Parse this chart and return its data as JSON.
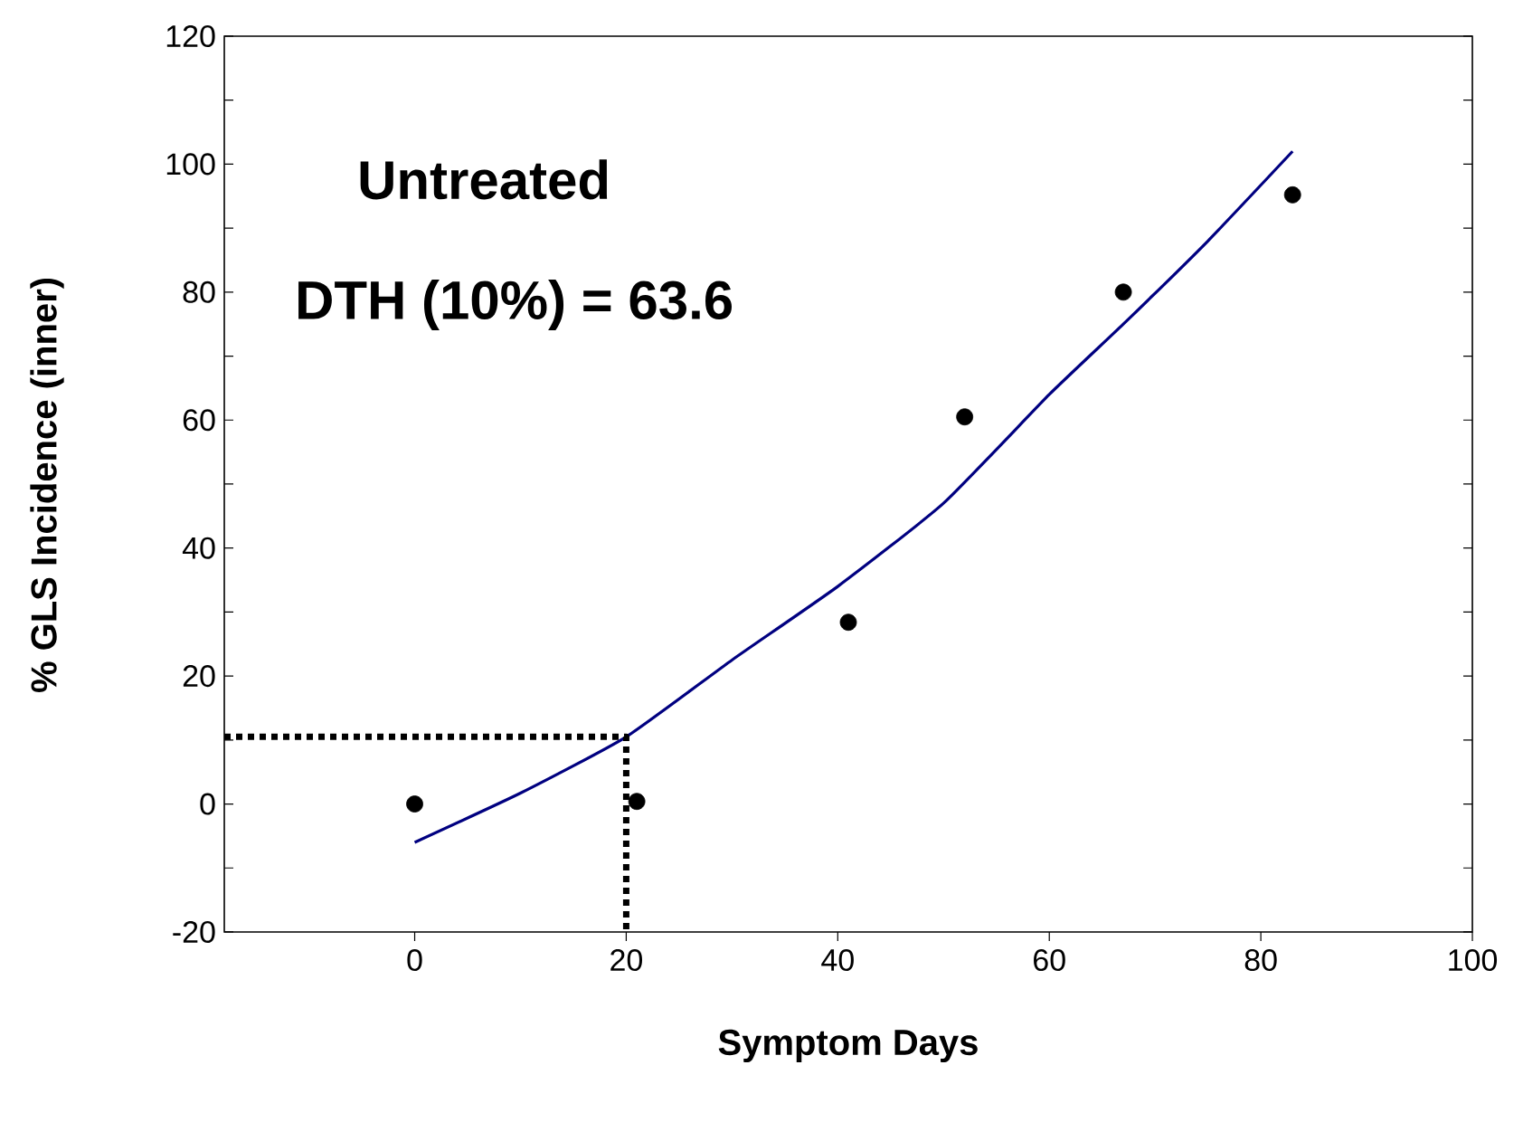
{
  "chart_data": {
    "type": "scatter",
    "xlabel": "Symptom Days",
    "ylabel": "% GLS Incidence (inner)",
    "xlim": [
      -18,
      100
    ],
    "ylim": [
      -20,
      120
    ],
    "xticks": [
      0,
      20,
      40,
      60,
      80,
      100
    ],
    "yticks": [
      -20,
      0,
      20,
      40,
      60,
      80,
      100,
      120
    ],
    "grid": false,
    "annotations": [
      "Untreated",
      "DTH (10%) = 63.6"
    ],
    "series": [
      {
        "type": "line",
        "color": "#000080",
        "line_style": "solid",
        "marker": "none",
        "x": [
          0,
          10,
          20,
          30,
          40,
          50,
          60,
          67,
          75,
          83
        ],
        "values": [
          -6,
          1.7,
          10.5,
          22.5,
          34,
          47,
          64,
          75,
          88,
          102
        ]
      },
      {
        "type": "line",
        "color": "#000000",
        "line_style": "dotted",
        "marker": "none",
        "x": [
          -18,
          20,
          20
        ],
        "values": [
          10.5,
          10.5,
          -20
        ]
      },
      {
        "color": "#000000",
        "marker": "circle",
        "x": [
          0,
          21,
          41,
          52,
          67,
          83
        ],
        "values": [
          0,
          0.4,
          28.4,
          60.5,
          80,
          95.2
        ]
      }
    ]
  }
}
